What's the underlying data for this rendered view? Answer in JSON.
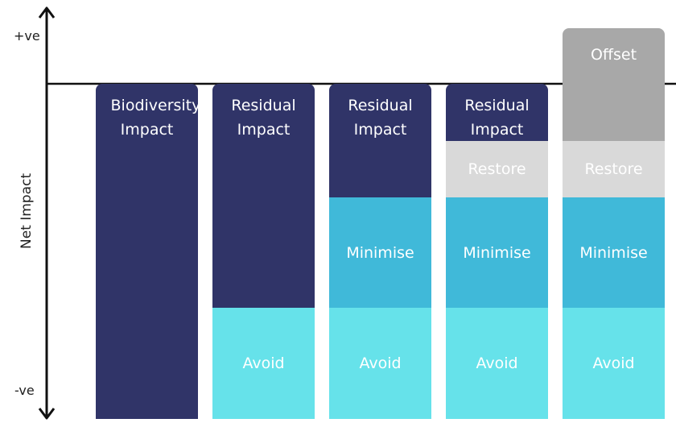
{
  "axis": {
    "positive_label": "+ve",
    "negative_label": "-ve",
    "title": "Net Impact"
  },
  "columns": [
    {
      "top_label": "Biodiversity Impact"
    },
    {
      "residual_label": "Residual Impact",
      "avoid_label": "Avoid"
    },
    {
      "residual_label": "Residual Impact",
      "minimise_label": "Minimise",
      "avoid_label": "Avoid"
    },
    {
      "residual_label": "Residual Impact",
      "restore_label": "Restore",
      "minimise_label": "Minimise",
      "avoid_label": "Avoid"
    },
    {
      "offset_label": "Offset",
      "restore_label": "Restore",
      "minimise_label": "Minimise",
      "avoid_label": "Avoid"
    }
  ],
  "colors": {
    "residual": "#303468",
    "restore": "#d9d9d9",
    "minimise": "#40b9d9",
    "avoid": "#66e2ea",
    "offset": "#a8a8a8",
    "axis": "#111111"
  }
}
